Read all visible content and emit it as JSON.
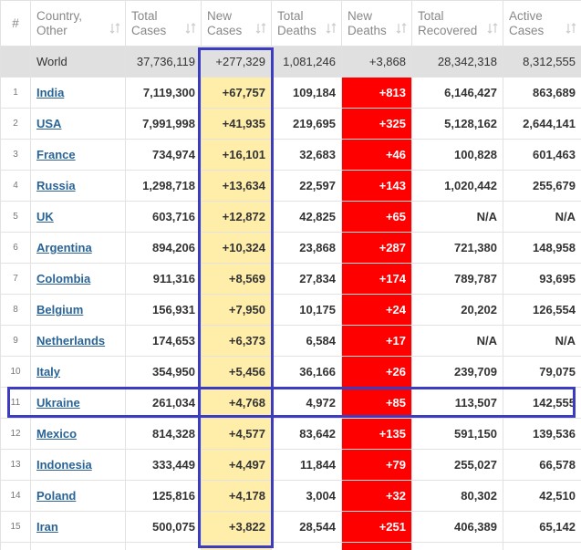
{
  "header": {
    "columns": [
      [
        "#"
      ],
      [
        "Country,",
        "Other"
      ],
      [
        "Total",
        "Cases"
      ],
      [
        "New",
        "Cases"
      ],
      [
        "Total",
        "Deaths"
      ],
      [
        "New",
        "Deaths"
      ],
      [
        "Total",
        "Recovered"
      ],
      [
        "Active",
        "Cases"
      ]
    ]
  },
  "world": [
    "World",
    "37,736,119",
    "+277,329",
    "1,081,246",
    "+3,868",
    "28,342,318",
    "8,312,555"
  ],
  "rows": [
    [
      "1",
      "India",
      "7,119,300",
      "+67,757",
      "109,184",
      "+813",
      "6,146,427",
      "863,689"
    ],
    [
      "2",
      "USA",
      "7,991,998",
      "+41,935",
      "219,695",
      "+325",
      "5,128,162",
      "2,644,141"
    ],
    [
      "3",
      "France",
      "734,974",
      "+16,101",
      "32,683",
      "+46",
      "100,828",
      "601,463"
    ],
    [
      "4",
      "Russia",
      "1,298,718",
      "+13,634",
      "22,597",
      "+143",
      "1,020,442",
      "255,679"
    ],
    [
      "5",
      "UK",
      "603,716",
      "+12,872",
      "42,825",
      "+65",
      "N/A",
      "N/A"
    ],
    [
      "6",
      "Argentina",
      "894,206",
      "+10,324",
      "23,868",
      "+287",
      "721,380",
      "148,958"
    ],
    [
      "7",
      "Colombia",
      "911,316",
      "+8,569",
      "27,834",
      "+174",
      "789,787",
      "93,695"
    ],
    [
      "8",
      "Belgium",
      "156,931",
      "+7,950",
      "10,175",
      "+24",
      "20,202",
      "126,554"
    ],
    [
      "9",
      "Netherlands",
      "174,653",
      "+6,373",
      "6,584",
      "+17",
      "N/A",
      "N/A"
    ],
    [
      "10",
      "Italy",
      "354,950",
      "+5,456",
      "36,166",
      "+26",
      "239,709",
      "79,075"
    ],
    [
      "11",
      "Ukraine",
      "261,034",
      "+4,768",
      "4,972",
      "+85",
      "113,507",
      "142,555"
    ],
    [
      "12",
      "Mexico",
      "814,328",
      "+4,577",
      "83,642",
      "+135",
      "591,150",
      "139,536"
    ],
    [
      "13",
      "Indonesia",
      "333,449",
      "+4,497",
      "11,844",
      "+79",
      "255,027",
      "66,578"
    ],
    [
      "14",
      "Poland",
      "125,816",
      "+4,178",
      "3,004",
      "+32",
      "80,302",
      "42,510"
    ],
    [
      "15",
      "Iran",
      "500,075",
      "+3,822",
      "28,544",
      "+251",
      "406,389",
      "65,142"
    ]
  ]
}
